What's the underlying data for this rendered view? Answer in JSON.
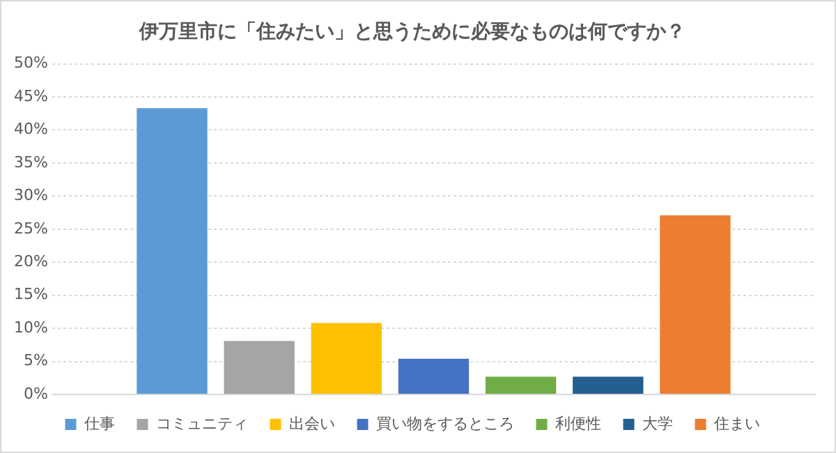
{
  "chart_data": {
    "type": "bar",
    "title": "伊万里市に「住みたい」と思うために必要なものは何ですか？",
    "categories": [
      null
    ],
    "series": [
      {
        "name": "仕事",
        "color": "#5b9bd5",
        "values": [
          43.3
        ]
      },
      {
        "name": "コミュニティ",
        "color": "#a5a5a5",
        "values": [
          8.1
        ]
      },
      {
        "name": "出会い",
        "color": "#ffc000",
        "values": [
          10.8
        ]
      },
      {
        "name": "買い物をするところ",
        "color": "#4472c4",
        "values": [
          5.4
        ]
      },
      {
        "name": "利便性",
        "color": "#70ad47",
        "values": [
          2.7
        ]
      },
      {
        "name": "大学",
        "color": "#255e91",
        "values": [
          2.7
        ]
      },
      {
        "name": "住まい",
        "color": "#ed7d31",
        "values": [
          27.1
        ]
      }
    ],
    "ylim": [
      0,
      50
    ],
    "yticks": [
      {
        "value": 0,
        "label": "0%"
      },
      {
        "value": 5,
        "label": "5%"
      },
      {
        "value": 10,
        "label": "10%"
      },
      {
        "value": 15,
        "label": "15%"
      },
      {
        "value": 20,
        "label": "20%"
      },
      {
        "value": 25,
        "label": "25%"
      },
      {
        "value": 30,
        "label": "30%"
      },
      {
        "value": 35,
        "label": "35%"
      },
      {
        "value": 40,
        "label": "40%"
      },
      {
        "value": 45,
        "label": "45%"
      },
      {
        "value": 50,
        "label": "50%"
      }
    ],
    "grid": "y",
    "legend": "bottom",
    "tick_labels": "y"
  }
}
